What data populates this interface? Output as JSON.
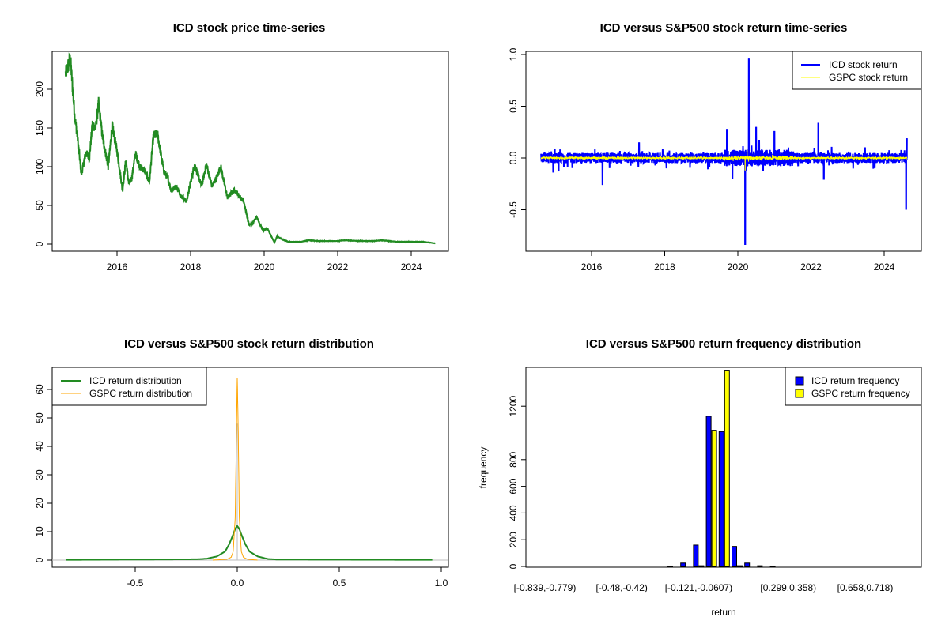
{
  "chart_data": [
    {
      "type": "line",
      "title": "ICD stock price time-series",
      "xlabel": "",
      "ylabel": "",
      "x_ticks": [
        2016,
        2018,
        2020,
        2022,
        2024
      ],
      "x_tick_labels": [
        "2016",
        "2018",
        "2020",
        "2022",
        "2024"
      ],
      "y_ticks": [
        0,
        50,
        100,
        150,
        200
      ],
      "y_tick_labels": [
        "0",
        "50",
        "100",
        "150",
        "200"
      ],
      "ylim": [
        0,
        240
      ],
      "color": "#228B22",
      "series": [
        {
          "name": "ICD price",
          "x": [
            2014.6,
            2014.66,
            2014.73,
            2014.77,
            2014.85,
            2014.92,
            2015.03,
            2015.15,
            2015.25,
            2015.33,
            2015.42,
            2015.5,
            2015.6,
            2015.76,
            2015.87,
            2016.0,
            2016.15,
            2016.24,
            2016.32,
            2016.4,
            2016.5,
            2016.62,
            2016.75,
            2016.88,
            2016.99,
            2017.1,
            2017.27,
            2017.38,
            2017.48,
            2017.6,
            2017.75,
            2017.89,
            2018.0,
            2018.11,
            2018.3,
            2018.43,
            2018.58,
            2018.7,
            2018.82,
            2019.0,
            2019.2,
            2019.44,
            2019.59,
            2019.7,
            2019.79,
            2019.97,
            2020.09,
            2020.28,
            2020.35,
            2020.5,
            2020.66,
            2021.0,
            2021.2,
            2021.5,
            2022.0,
            2022.2,
            2022.6,
            2023.0,
            2023.2,
            2023.6,
            2024.0,
            2024.3,
            2024.5,
            2024.65
          ],
          "y": [
            220,
            228,
            240,
            215,
            165,
            140,
            90,
            118,
            112,
            155,
            150,
            182,
            140,
            100,
            153,
            120,
            70,
            108,
            78,
            85,
            117,
            100,
            95,
            80,
            140,
            142,
            95,
            85,
            68,
            75,
            62,
            55,
            80,
            103,
            75,
            103,
            75,
            85,
            100,
            60,
            70,
            55,
            25,
            28,
            35,
            18,
            20,
            2,
            10,
            6,
            3,
            3,
            5,
            4,
            4,
            5,
            4,
            4,
            5,
            3,
            3,
            3,
            2,
            1
          ]
        }
      ]
    },
    {
      "type": "line",
      "title": "ICD versus S&P500 stock return time-series",
      "x_ticks": [
        2016,
        2018,
        2020,
        2022,
        2024
      ],
      "x_tick_labels": [
        "2016",
        "2018",
        "2020",
        "2022",
        "2024"
      ],
      "y_ticks": [
        -0.5,
        0,
        0.5,
        1.0
      ],
      "y_tick_labels": [
        "-0.5",
        "0.0",
        "0.5",
        "1.0"
      ],
      "ylim": [
        -0.84,
        0.96
      ],
      "legend": {
        "placement": "top-right",
        "entries": [
          "ICD stock return",
          "GSPC stock return"
        ]
      },
      "series": [
        {
          "name": "ICD stock return",
          "color": "#0000FF",
          "typical_abs_return": 0.05,
          "spikes_x": [
            2014.95,
            2015.1,
            2016.3,
            2017.3,
            2019.7,
            2019.85,
            2020.2,
            2020.3,
            2020.5,
            2021.0,
            2022.2,
            2022.35,
            2024.6,
            2024.62
          ],
          "spikes_y": [
            -0.14,
            -0.13,
            -0.26,
            0.15,
            0.28,
            -0.2,
            -0.84,
            0.96,
            0.3,
            0.26,
            0.34,
            -0.21,
            -0.5,
            0.19
          ]
        },
        {
          "name": "GSPC stock return",
          "color": "#FFFF00",
          "typical_abs_return": 0.01,
          "spikes_x": [
            2020.2,
            2020.25
          ],
          "spikes_y": [
            -0.12,
            0.09
          ]
        }
      ]
    },
    {
      "type": "line",
      "title": "ICD versus S&P500 stock return distribution",
      "x_ticks": [
        -0.5,
        0,
        0.5,
        1.0
      ],
      "x_tick_labels": [
        "-0.5",
        "0.0",
        "0.5",
        "1.0"
      ],
      "y_ticks": [
        0,
        10,
        20,
        30,
        40,
        50,
        60
      ],
      "y_tick_labels": [
        "0",
        "10",
        "20",
        "30",
        "40",
        "50",
        "60"
      ],
      "legend": {
        "placement": "top-left",
        "entries": [
          "ICD return distribution",
          "GSPC return distribution"
        ]
      },
      "series": [
        {
          "name": "ICD return distribution",
          "color": "#228B22",
          "x": [
            -0.84,
            -0.2,
            -0.15,
            -0.1,
            -0.06,
            -0.04,
            -0.02,
            -0.01,
            0,
            0.01,
            0.02,
            0.04,
            0.06,
            0.1,
            0.15,
            0.2,
            0.96
          ],
          "y": [
            0.1,
            0.3,
            0.5,
            1.3,
            3,
            5.5,
            9,
            11,
            12,
            11,
            9,
            5.5,
            3,
            1.3,
            0.4,
            0.2,
            0.1
          ]
        },
        {
          "name": "GSPC return distribution",
          "color": "#FFA500",
          "x": [
            -0.12,
            -0.05,
            -0.03,
            -0.02,
            -0.01,
            -0.005,
            0,
            0.005,
            0.01,
            0.02,
            0.03,
            0.05,
            0.1
          ],
          "y": [
            0,
            0.3,
            1,
            3,
            15,
            40,
            64,
            45,
            15,
            3,
            1,
            0.3,
            0
          ]
        }
      ]
    },
    {
      "type": "bar",
      "title": "ICD versus S&P500 return frequency distribution",
      "xlabel": "return",
      "ylabel": "frequency",
      "bin_start": -0.839,
      "bin_width": 0.0599,
      "bin_count": 30,
      "x_tick_bins": [
        0,
        6,
        12,
        19,
        25
      ],
      "x_tick_labels": [
        "[-0.839,-0.779)",
        "[-0.48,-0.42)",
        "[-0.121,-0.0607)",
        "[0.299,0.358)",
        "[0.658,0.718)"
      ],
      "y_ticks": [
        0,
        200,
        400,
        600,
        800,
        1200
      ],
      "y_tick_labels": [
        "0",
        "200",
        "400",
        "600",
        "800",
        "1200"
      ],
      "ylim": [
        0,
        1490
      ],
      "legend": {
        "placement": "top-right",
        "entries": [
          "ICD return frequency",
          "GSPC return frequency"
        ]
      },
      "series": [
        {
          "name": "ICD return frequency",
          "color": "#0000FF",
          "values": [
            0,
            0,
            0,
            0,
            0,
            0,
            0,
            0,
            0,
            0,
            3,
            25,
            160,
            1125,
            1010,
            150,
            25,
            5,
            3,
            0,
            0,
            0,
            0,
            0,
            0,
            0,
            0,
            0,
            0,
            0
          ]
        },
        {
          "name": "GSPC return frequency",
          "color": "#FFFF00",
          "values": [
            0,
            0,
            0,
            0,
            0,
            0,
            0,
            0,
            0,
            0,
            0,
            0,
            5,
            1020,
            1470,
            5,
            0,
            0,
            0,
            0,
            0,
            0,
            0,
            0,
            0,
            0,
            0,
            0,
            0,
            0
          ]
        }
      ]
    }
  ]
}
